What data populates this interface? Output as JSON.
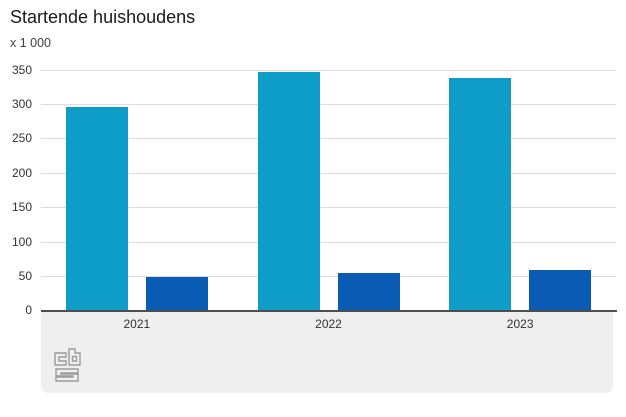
{
  "chart_data": {
    "type": "bar",
    "title": "Startende huishoudens",
    "unit_label": "x 1 000",
    "categories": [
      "2021",
      "2022",
      "2023"
    ],
    "series": [
      {
        "name": "",
        "color": "#0d9dc8",
        "values": [
          295,
          346,
          337
        ]
      },
      {
        "name": "",
        "color": "#0a5bb4",
        "values": [
          49,
          55,
          59
        ]
      }
    ],
    "ylim": [
      0,
      350
    ],
    "yticks": [
      0,
      50,
      100,
      150,
      200,
      250,
      300,
      350
    ],
    "grid": true,
    "legend": "none"
  },
  "footer": {
    "logo": "cbs-logo"
  },
  "colors": {
    "bar_light_blue": "#0d9dc8",
    "bar_dark_blue": "#0a5bb4",
    "gridline": "#dcdcdc",
    "axis_line": "#4d4d4d",
    "panel_background": "#efefef",
    "tick_text": "#333333",
    "title_text": "#1a1a1a",
    "logo_gray": "#9c9c9c"
  }
}
